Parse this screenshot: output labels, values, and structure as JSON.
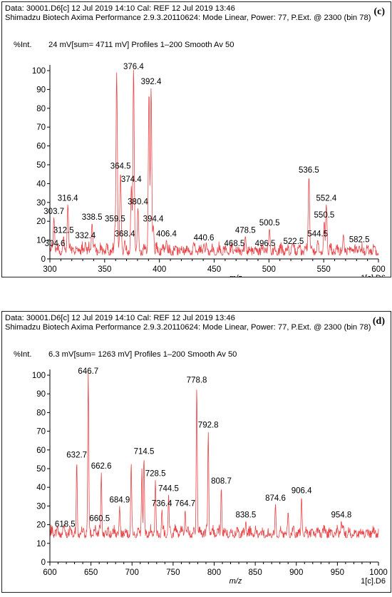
{
  "chart_data": [
    {
      "type": "line",
      "panel_tag": "(c)",
      "header_line1": "Data: 30001.D6[c] 12 Jul 2019 14:10 Cal: REF 12 Jul 2019 13:46",
      "header_line2": "Shimadzu  Biotech Axima Performance 2.9.3.20110624: Mode Linear, Power: 77, P.Ext. @ 2300 (bin 78)",
      "y_title": "%Int.",
      "intensity_info": "24 mV[sum=  4711 mV]  Profiles 1–200 Smooth Av 50",
      "xlabel": "m/z",
      "footer": "1[c].D6",
      "xlim": [
        300,
        600
      ],
      "ylim": [
        0,
        100
      ],
      "x_ticks": [
        300,
        350,
        400,
        450,
        500,
        550,
        600
      ],
      "y_ticks": [
        0,
        10,
        20,
        30,
        40,
        50,
        60,
        70,
        80,
        90,
        100
      ],
      "baseline": 2,
      "line_color": "#e8474a",
      "peaks": [
        {
          "x": 303.7,
          "y": 22,
          "label": "303.7"
        },
        {
          "x": 304.6,
          "y": 5,
          "label": "304.6"
        },
        {
          "x": 312.5,
          "y": 12,
          "label": "312.5"
        },
        {
          "x": 316.4,
          "y": 29,
          "label": "316.4"
        },
        {
          "x": 332.4,
          "y": 9,
          "label": "332.4"
        },
        {
          "x": 338.5,
          "y": 19,
          "label": "338.5"
        },
        {
          "x": 359.5,
          "y": 18,
          "label": "359.5"
        },
        {
          "x": 361.0,
          "y": 99,
          "label": ""
        },
        {
          "x": 364.5,
          "y": 46,
          "label": "364.5"
        },
        {
          "x": 368.4,
          "y": 10,
          "label": "368.4"
        },
        {
          "x": 374.4,
          "y": 39,
          "label": "374.4"
        },
        {
          "x": 376.4,
          "y": 101,
          "label": "376.4"
        },
        {
          "x": 380.4,
          "y": 27,
          "label": "380.4"
        },
        {
          "x": 390.5,
          "y": 89,
          "label": ""
        },
        {
          "x": 392.4,
          "y": 91,
          "label": "392.4"
        },
        {
          "x": 394.4,
          "y": 18,
          "label": "394.4"
        },
        {
          "x": 406.4,
          "y": 10,
          "label": "406.4"
        },
        {
          "x": 440.6,
          "y": 8,
          "label": "440.6"
        },
        {
          "x": 468.5,
          "y": 5,
          "label": "468.5"
        },
        {
          "x": 478.5,
          "y": 12,
          "label": "478.5"
        },
        {
          "x": 496.5,
          "y": 5,
          "label": "496.5"
        },
        {
          "x": 500.5,
          "y": 16,
          "label": "500.5"
        },
        {
          "x": 522.5,
          "y": 6,
          "label": "522.5"
        },
        {
          "x": 536.5,
          "y": 44,
          "label": "536.5"
        },
        {
          "x": 544.5,
          "y": 10,
          "label": "544.5"
        },
        {
          "x": 550.5,
          "y": 20,
          "label": "550.5"
        },
        {
          "x": 552.4,
          "y": 29,
          "label": "552.4"
        },
        {
          "x": 568.0,
          "y": 13,
          "label": ""
        },
        {
          "x": 582.5,
          "y": 7,
          "label": "582.5"
        }
      ]
    },
    {
      "type": "line",
      "panel_tag": "(d)",
      "header_line1": "Data: 30001.D6[c] 12 Jul 2019 14:10 Cal: REF 12 Jul 2019 13:46",
      "header_line2": "Shimadzu  Biotech Axima Performance 2.9.3.20110624: Mode Linear, Power: 77, P.Ext. @ 2300 (bin 78)",
      "y_title": "%Int.",
      "intensity_info": "6.3 mV[sum=  1263 mV]  Profiles 1–200 Smooth Av 50",
      "xlabel": "m/z",
      "footer": "1[c].D6",
      "xlim": [
        600,
        1000
      ],
      "ylim": [
        0,
        100
      ],
      "x_ticks": [
        600,
        650,
        700,
        750,
        800,
        850,
        900,
        950,
        1000
      ],
      "y_ticks": [
        0,
        10,
        20,
        30,
        40,
        50,
        60,
        70,
        80,
        90,
        100
      ],
      "baseline": 13,
      "line_color": "#e8474a",
      "peaks": [
        {
          "x": 618.5,
          "y": 17,
          "label": "618.5"
        },
        {
          "x": 632.7,
          "y": 54,
          "label": "632.7"
        },
        {
          "x": 646.7,
          "y": 102,
          "label": "646.7"
        },
        {
          "x": 660.5,
          "y": 20,
          "label": "660.5"
        },
        {
          "x": 662.6,
          "y": 48,
          "label": "662.6"
        },
        {
          "x": 684.9,
          "y": 30,
          "label": "684.9"
        },
        {
          "x": 699.0,
          "y": 53,
          "label": ""
        },
        {
          "x": 712.0,
          "y": 50,
          "label": ""
        },
        {
          "x": 714.5,
          "y": 56,
          "label": "714.5"
        },
        {
          "x": 728.5,
          "y": 44,
          "label": "728.5"
        },
        {
          "x": 736.4,
          "y": 28,
          "label": "736.4"
        },
        {
          "x": 744.5,
          "y": 36,
          "label": "744.5"
        },
        {
          "x": 764.7,
          "y": 28,
          "label": "764.7"
        },
        {
          "x": 778.8,
          "y": 94,
          "label": "778.8"
        },
        {
          "x": 792.8,
          "y": 70,
          "label": "792.8"
        },
        {
          "x": 808.7,
          "y": 40,
          "label": "808.7"
        },
        {
          "x": 838.5,
          "y": 22,
          "label": "838.5"
        },
        {
          "x": 874.6,
          "y": 31,
          "label": "874.6"
        },
        {
          "x": 890.0,
          "y": 27,
          "label": ""
        },
        {
          "x": 906.4,
          "y": 35,
          "label": "906.4"
        },
        {
          "x": 954.8,
          "y": 22,
          "label": "954.8"
        },
        {
          "x": 985.0,
          "y": 17,
          "label": ""
        }
      ]
    }
  ]
}
